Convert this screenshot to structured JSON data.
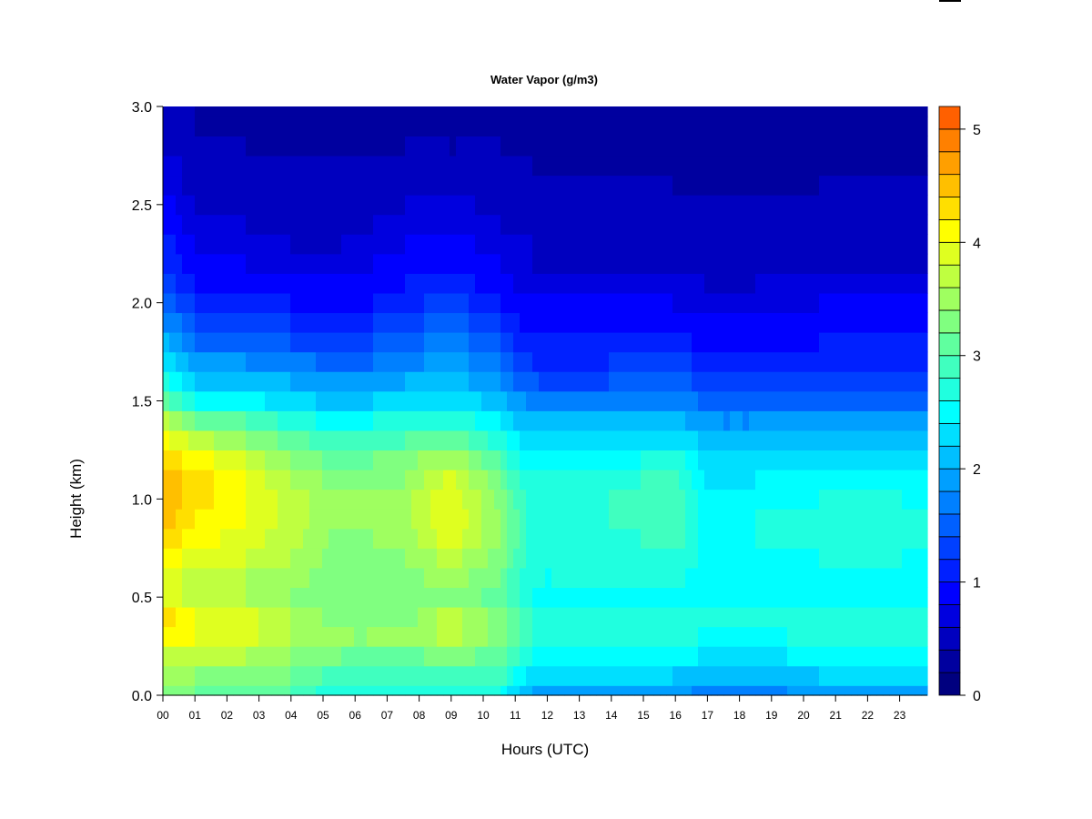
{
  "chart_data": {
    "type": "heatmap",
    "title": "Water Vapor (g/m3)",
    "xlabel": "Hours (UTC)",
    "ylabel": "Height (km)",
    "xlim": [
      0,
      24
    ],
    "ylim": [
      0,
      3
    ],
    "x_ticks": [
      {
        "value": 0,
        "label": "00"
      },
      {
        "value": 1,
        "label": "01"
      },
      {
        "value": 2,
        "label": "02"
      },
      {
        "value": 3,
        "label": "03"
      },
      {
        "value": 4,
        "label": "04"
      },
      {
        "value": 5,
        "label": "05"
      },
      {
        "value": 6,
        "label": "06"
      },
      {
        "value": 7,
        "label": "07"
      },
      {
        "value": 8,
        "label": "08"
      },
      {
        "value": 9,
        "label": "09"
      },
      {
        "value": 10,
        "label": "10"
      },
      {
        "value": 11,
        "label": "11"
      },
      {
        "value": 12,
        "label": "12"
      },
      {
        "value": 13,
        "label": "13"
      },
      {
        "value": 14,
        "label": "14"
      },
      {
        "value": 15,
        "label": "15"
      },
      {
        "value": 16,
        "label": "16"
      },
      {
        "value": 17,
        "label": "17"
      },
      {
        "value": 18,
        "label": "18"
      },
      {
        "value": 19,
        "label": "19"
      },
      {
        "value": 20,
        "label": "20"
      },
      {
        "value": 21,
        "label": "21"
      },
      {
        "value": 22,
        "label": "22"
      },
      {
        "value": 23,
        "label": "23"
      }
    ],
    "y_ticks": [
      {
        "value": 0.0,
        "label": "0.0"
      },
      {
        "value": 0.5,
        "label": "0.5"
      },
      {
        "value": 1.0,
        "label": "1.0"
      },
      {
        "value": 1.5,
        "label": "1.5"
      },
      {
        "value": 2.0,
        "label": "2.0"
      },
      {
        "value": 2.5,
        "label": "2.5"
      },
      {
        "value": 3.0,
        "label": "3.0"
      }
    ],
    "colorbar": {
      "range": [
        0,
        5.2
      ],
      "step": 0.2,
      "tick_values": [
        0,
        1,
        2,
        3,
        4,
        5
      ],
      "tick_labels": [
        "0",
        "1",
        "2",
        "3",
        "4",
        "5"
      ],
      "colors": [
        "#00007F",
        "#00009F",
        "#0000BF",
        "#0000DF",
        "#0000FF",
        "#0020FF",
        "#0040FF",
        "#0060FF",
        "#0080FF",
        "#009FFF",
        "#00BFFF",
        "#00DFFF",
        "#00FFFF",
        "#20FFDF",
        "#40FFBF",
        "#60FF9F",
        "#80FF80",
        "#9FFF60",
        "#BFFF40",
        "#DFFF20",
        "#FFFF00",
        "#FFDF00",
        "#FFBF00",
        "#FF9F00",
        "#FF8000",
        "#FF6000",
        "#FF4000",
        "#FF2000",
        "#FF0000",
        "#DF0000",
        "#BF0000",
        "#9F0000",
        "#7F0000"
      ]
    },
    "heights_km": [
      0.0,
      0.1,
      0.2,
      0.3,
      0.4,
      0.5,
      0.6,
      0.7,
      0.8,
      0.9,
      1.0,
      1.1,
      1.2,
      1.3,
      1.4,
      1.5,
      1.6,
      1.7,
      1.8,
      1.9,
      2.0,
      2.1,
      2.2,
      2.3,
      2.4,
      2.5,
      2.6,
      2.7,
      2.8,
      2.9,
      3.0
    ],
    "profiles": [
      {
        "hour": 0.0,
        "values": [
          3.3,
          3.5,
          3.8,
          4.2,
          4.3,
          4.0,
          3.9,
          4.1,
          4.4,
          4.5,
          4.6,
          4.6,
          4.4,
          4.1,
          3.7,
          3.1,
          2.7,
          2.4,
          2.1,
          1.8,
          1.5,
          1.3,
          1.2,
          1.1,
          1.0,
          0.9,
          0.8,
          0.7,
          0.6,
          0.5,
          0.4
        ]
      },
      {
        "hour": 1.0,
        "values": [
          3.2,
          3.4,
          3.7,
          4.0,
          4.0,
          3.7,
          3.7,
          3.9,
          4.1,
          4.2,
          4.3,
          4.3,
          4.1,
          3.7,
          3.2,
          2.6,
          2.2,
          1.9,
          1.6,
          1.4,
          1.2,
          1.0,
          0.9,
          0.8,
          0.7,
          0.6,
          0.5,
          0.5,
          0.4,
          0.4,
          0.4
        ]
      },
      {
        "hour": 2.5,
        "values": [
          3.1,
          3.3,
          3.6,
          3.9,
          3.9,
          3.6,
          3.6,
          3.8,
          3.9,
          4.0,
          4.0,
          4.0,
          3.8,
          3.4,
          3.0,
          2.5,
          2.1,
          1.8,
          1.5,
          1.3,
          1.1,
          0.9,
          0.8,
          0.7,
          0.6,
          0.5,
          0.5,
          0.4,
          0.4,
          0.3,
          0.3
        ]
      },
      {
        "hour": 4.0,
        "values": [
          3.0,
          3.2,
          3.4,
          3.6,
          3.6,
          3.4,
          3.5,
          3.6,
          3.7,
          3.7,
          3.7,
          3.6,
          3.4,
          3.1,
          2.7,
          2.3,
          2.0,
          1.7,
          1.4,
          1.2,
          1.0,
          0.8,
          0.7,
          0.6,
          0.5,
          0.5,
          0.4,
          0.4,
          0.3,
          0.3,
          0.3
        ]
      },
      {
        "hour": 5.5,
        "values": [
          2.6,
          2.9,
          3.2,
          3.4,
          3.3,
          3.2,
          3.2,
          3.3,
          3.3,
          3.4,
          3.4,
          3.3,
          3.1,
          2.8,
          2.5,
          2.1,
          1.8,
          1.5,
          1.3,
          1.1,
          0.9,
          0.8,
          0.7,
          0.6,
          0.5,
          0.5,
          0.4,
          0.4,
          0.3,
          0.3,
          0.3
        ]
      },
      {
        "hour": 7.5,
        "values": [
          2.6,
          2.9,
          3.1,
          3.4,
          3.3,
          3.2,
          3.3,
          3.4,
          3.5,
          3.5,
          3.5,
          3.4,
          3.3,
          3.0,
          2.7,
          2.3,
          2.0,
          1.7,
          1.5,
          1.3,
          1.1,
          1.0,
          0.9,
          0.8,
          0.7,
          0.6,
          0.5,
          0.4,
          0.4,
          0.3,
          0.3
        ]
      },
      {
        "hour": 9.0,
        "values": [
          2.7,
          3.0,
          3.3,
          3.7,
          3.7,
          3.4,
          3.5,
          3.7,
          3.9,
          4.0,
          4.0,
          3.9,
          3.6,
          3.2,
          2.8,
          2.4,
          2.1,
          1.9,
          1.7,
          1.5,
          1.3,
          1.1,
          1.0,
          0.9,
          0.8,
          0.7,
          0.6,
          0.5,
          0.4,
          0.4,
          0.3
        ]
      },
      {
        "hour": 10.5,
        "values": [
          2.6,
          2.9,
          3.1,
          3.3,
          3.3,
          3.1,
          3.2,
          3.3,
          3.4,
          3.4,
          3.3,
          3.2,
          3.0,
          2.7,
          2.4,
          2.1,
          1.8,
          1.6,
          1.4,
          1.2,
          1.0,
          0.9,
          0.8,
          0.7,
          0.6,
          0.5,
          0.5,
          0.4,
          0.4,
          0.3,
          0.3
        ]
      },
      {
        "hour": 11.5,
        "values": [
          2.0,
          2.3,
          2.6,
          2.8,
          2.8,
          2.6,
          2.6,
          2.7,
          2.7,
          2.7,
          2.7,
          2.6,
          2.4,
          2.2,
          2.0,
          1.7,
          1.4,
          1.2,
          1.0,
          0.9,
          0.8,
          0.7,
          0.6,
          0.6,
          0.5,
          0.5,
          0.4,
          0.4,
          0.3,
          0.3,
          0.3
        ]
      },
      {
        "hour": 14.0,
        "values": [
          1.9,
          2.2,
          2.5,
          2.7,
          2.7,
          2.5,
          2.6,
          2.7,
          2.7,
          2.8,
          2.8,
          2.7,
          2.5,
          2.2,
          2.0,
          1.7,
          1.4,
          1.2,
          1.0,
          0.9,
          0.8,
          0.7,
          0.6,
          0.6,
          0.5,
          0.4,
          0.4,
          0.3,
          0.3,
          0.3,
          0.2
        ]
      },
      {
        "hour": 16.0,
        "values": [
          1.9,
          2.2,
          2.6,
          2.8,
          2.8,
          2.6,
          2.7,
          2.8,
          2.9,
          3.0,
          3.0,
          2.9,
          2.7,
          2.4,
          2.1,
          1.8,
          1.5,
          1.3,
          1.1,
          0.9,
          0.8,
          0.7,
          0.6,
          0.5,
          0.5,
          0.4,
          0.4,
          0.3,
          0.3,
          0.3,
          0.2
        ]
      },
      {
        "hour": 17.0,
        "values": [
          1.7,
          2.0,
          2.3,
          2.5,
          2.6,
          2.4,
          2.4,
          2.5,
          2.5,
          2.5,
          2.5,
          2.4,
          2.3,
          2.1,
          1.8,
          1.5,
          1.3,
          1.1,
          0.9,
          0.8,
          0.7,
          0.6,
          0.5,
          0.5,
          0.4,
          0.4,
          0.3,
          0.3,
          0.3,
          0.2,
          0.2
        ]
      },
      {
        "hour": 18.5,
        "values": [
          1.7,
          2.0,
          2.3,
          2.5,
          2.6,
          2.5,
          2.5,
          2.5,
          2.6,
          2.6,
          2.5,
          2.4,
          2.3,
          2.1,
          1.8,
          1.5,
          1.3,
          1.1,
          0.9,
          0.8,
          0.7,
          0.6,
          0.5,
          0.5,
          0.4,
          0.4,
          0.3,
          0.3,
          0.3,
          0.2,
          0.2
        ]
      },
      {
        "hour": 20.5,
        "values": [
          1.9,
          2.2,
          2.5,
          2.7,
          2.7,
          2.5,
          2.5,
          2.6,
          2.6,
          2.6,
          2.6,
          2.5,
          2.3,
          2.1,
          1.8,
          1.5,
          1.3,
          1.2,
          1.0,
          0.9,
          0.8,
          0.7,
          0.6,
          0.5,
          0.5,
          0.4,
          0.4,
          0.3,
          0.3,
          0.3,
          0.2
        ]
      },
      {
        "hour": 23.9,
        "values": [
          2.0,
          2.3,
          2.6,
          2.8,
          2.8,
          2.6,
          2.6,
          2.6,
          2.7,
          2.7,
          2.6,
          2.5,
          2.4,
          2.2,
          1.9,
          1.6,
          1.4,
          1.2,
          1.0,
          0.9,
          0.8,
          0.7,
          0.6,
          0.5,
          0.5,
          0.4,
          0.4,
          0.3,
          0.3,
          0.3,
          0.2
        ]
      }
    ],
    "grid": false,
    "legend": "colorbar-right"
  }
}
